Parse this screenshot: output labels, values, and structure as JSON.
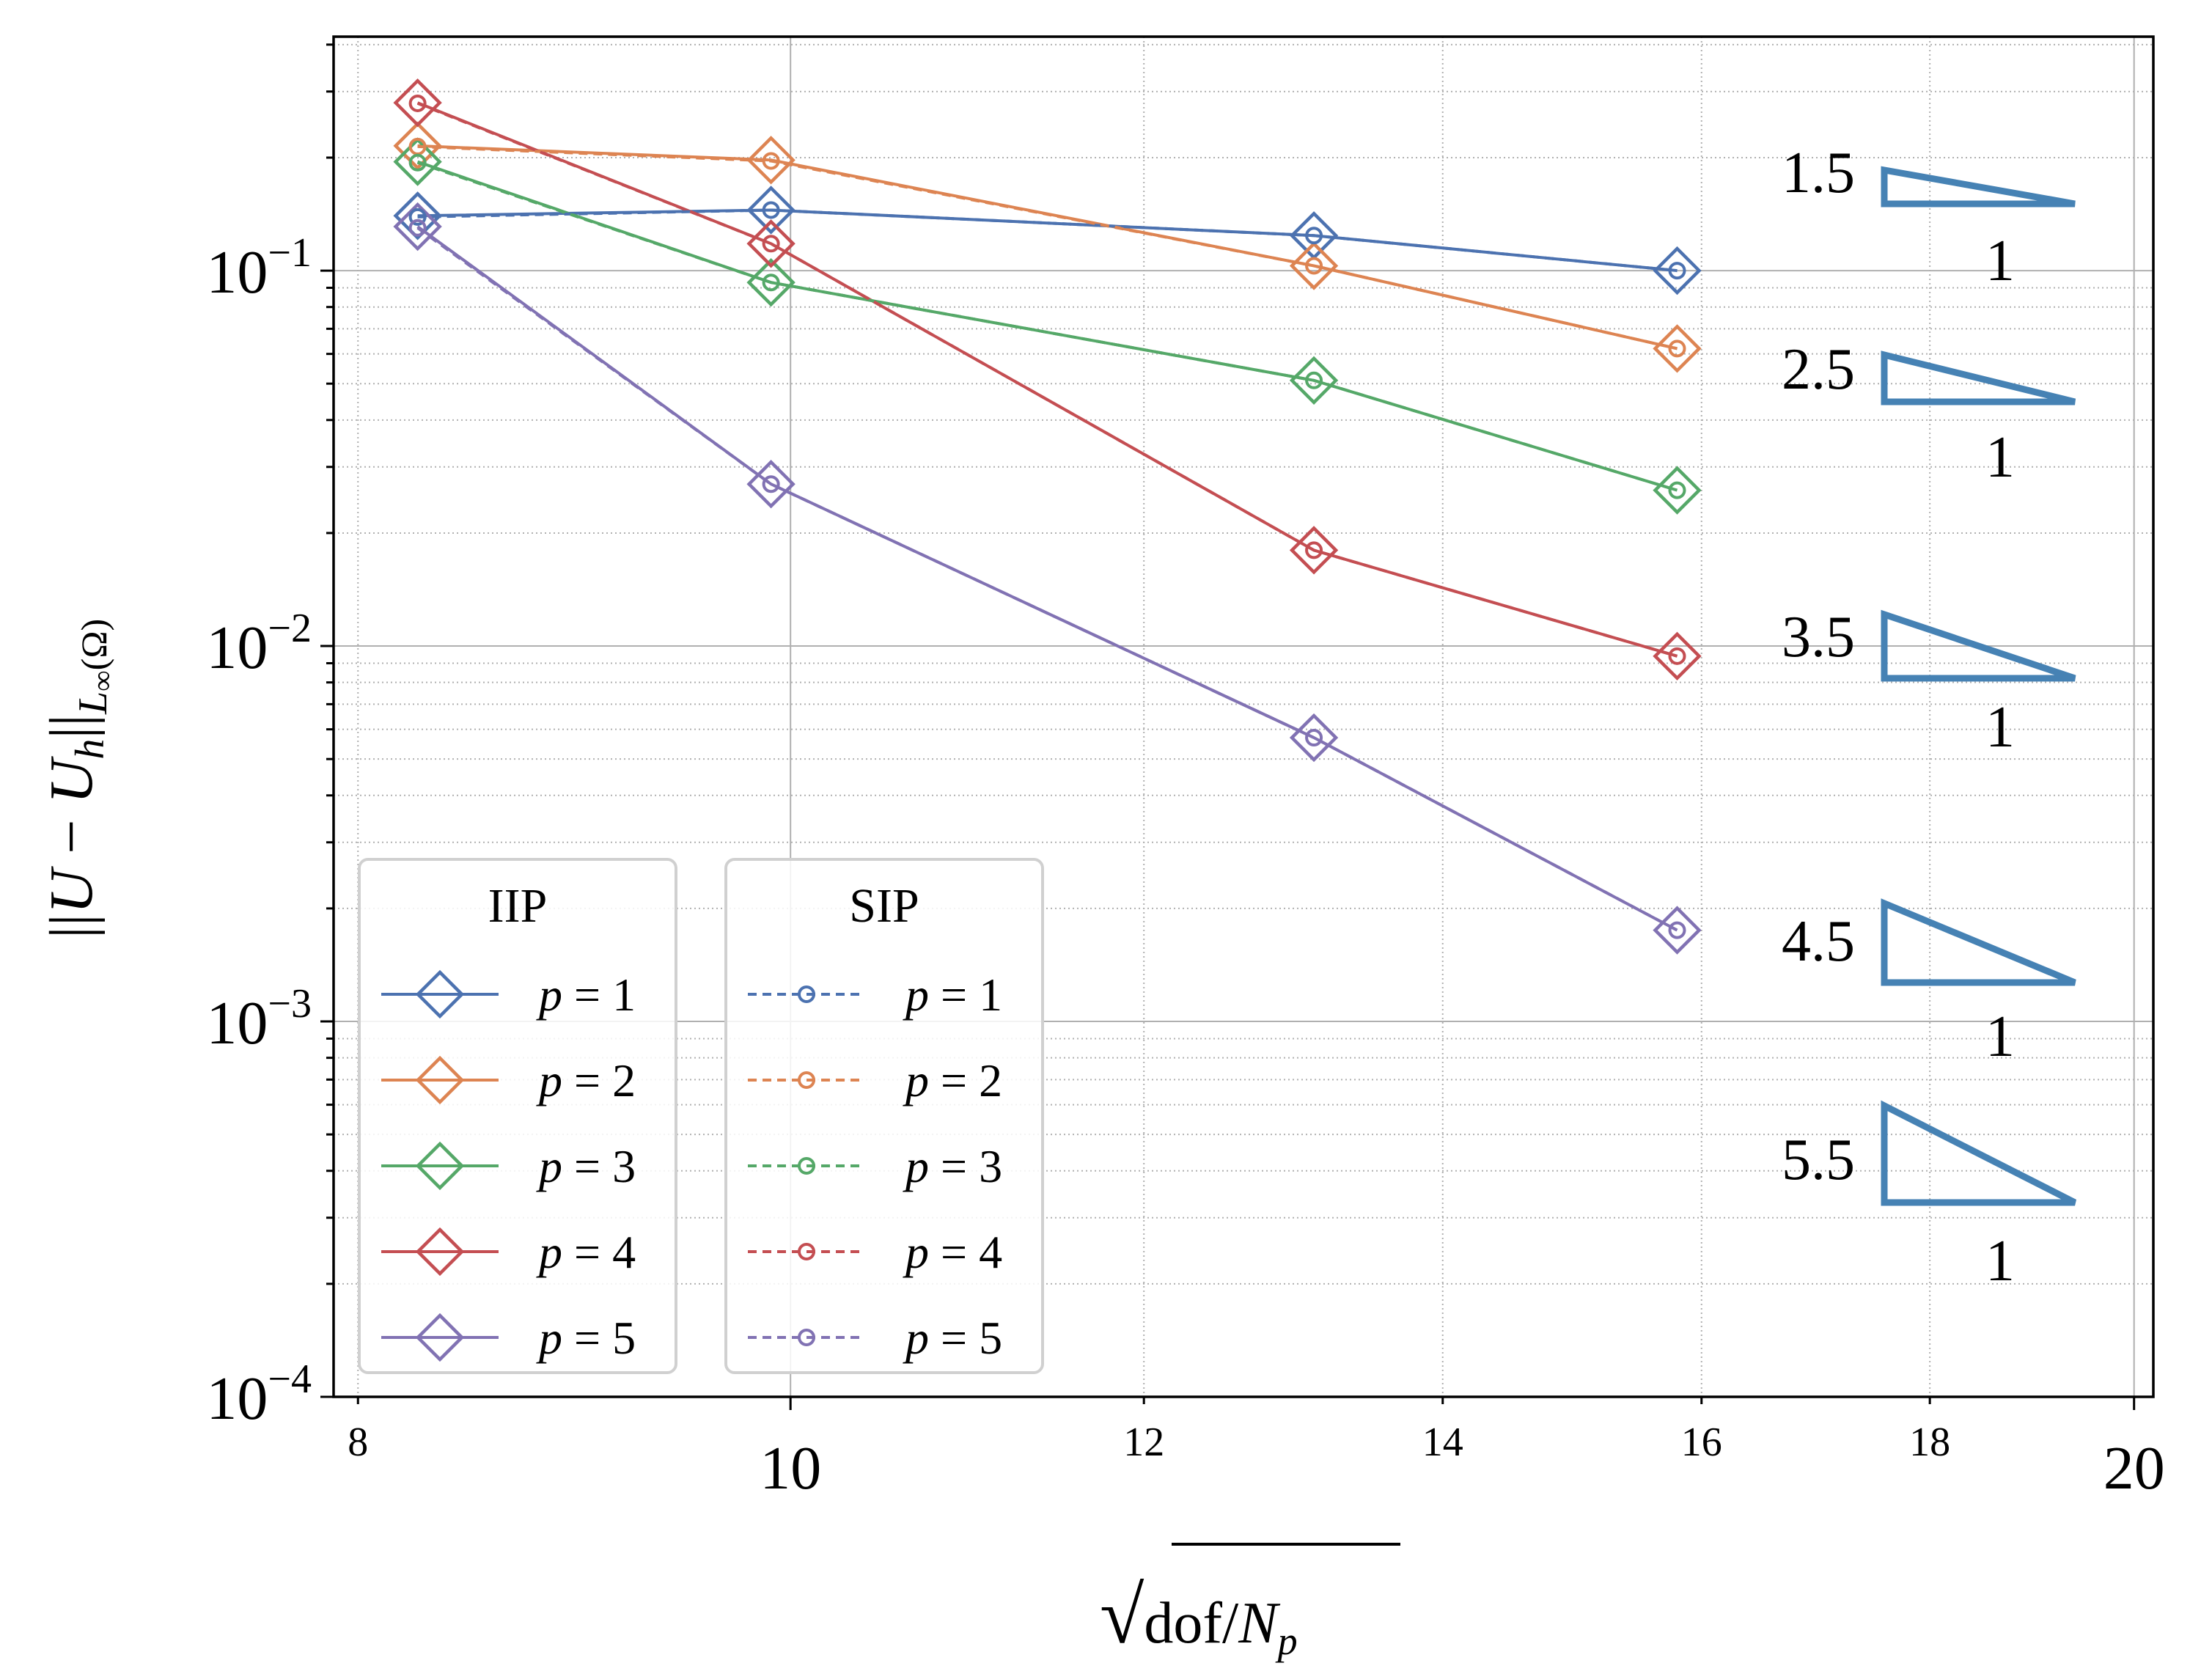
{
  "chart_data": {
    "type": "line",
    "xlabel": "√ dof/N_p",
    "xlabel_parts": {
      "sqrt": "√",
      "main": "dof/",
      "var": "N",
      "sub": "p"
    },
    "ylabel_parts": {
      "left": "||",
      "U": "U",
      "minus": " − ",
      "Uh": "U",
      "h": "h",
      "right": "||",
      "Linf": "L",
      "inf": "∞",
      "omega": "(Ω)"
    },
    "x_scale": "log",
    "y_scale": "log",
    "xlim": [
      7.9,
      20.2
    ],
    "ylim": [
      0.0001,
      0.42
    ],
    "x_major_ticks": [
      {
        "value": 10,
        "label": "10"
      },
      {
        "value": 20,
        "label": "20"
      }
    ],
    "x_minor_ticks": [
      {
        "value": 8,
        "label": "8"
      },
      {
        "value": 12,
        "label": "12"
      },
      {
        "value": 14,
        "label": "14"
      },
      {
        "value": 16,
        "label": "16"
      },
      {
        "value": 18,
        "label": "18"
      }
    ],
    "y_major_ticks": [
      {
        "value": 0.0001,
        "base": "10",
        "exp": "−4"
      },
      {
        "value": 0.001,
        "base": "10",
        "exp": "−3"
      },
      {
        "value": 0.01,
        "base": "10",
        "exp": "−2"
      },
      {
        "value": 0.1,
        "base": "10",
        "exp": "−1"
      }
    ],
    "grid": "major solid, minor dotted",
    "x": [
      8.25,
      9.9,
      13.1,
      15.8
    ],
    "series": [
      {
        "group": "IIP",
        "label": "p = 1",
        "p": "1",
        "color": "#4c72b0",
        "values": [
          0.14,
          0.145,
          0.124,
          0.1
        ]
      },
      {
        "group": "IIP",
        "label": "p = 2",
        "p": "2",
        "color": "#dd8452",
        "values": [
          0.215,
          0.197,
          0.103,
          0.062
        ]
      },
      {
        "group": "IIP",
        "label": "p = 3",
        "p": "3",
        "color": "#55a868",
        "values": [
          0.195,
          0.093,
          0.051,
          0.026
        ]
      },
      {
        "group": "IIP",
        "label": "p = 4",
        "p": "4",
        "color": "#c44e52",
        "values": [
          0.28,
          0.118,
          0.018,
          0.0094
        ]
      },
      {
        "group": "IIP",
        "label": "p = 5",
        "p": "5",
        "color": "#8172b3",
        "values": [
          0.131,
          0.027,
          0.0057,
          0.00175
        ]
      },
      {
        "group": "SIP",
        "label": "p = 1",
        "p": "1",
        "color": "#4c72b0",
        "values": [
          0.139,
          0.145,
          0.124,
          0.1
        ]
      },
      {
        "group": "SIP",
        "label": "p = 2",
        "p": "2",
        "color": "#dd8452",
        "values": [
          0.214,
          0.196,
          0.103,
          0.062
        ]
      },
      {
        "group": "SIP",
        "label": "p = 3",
        "p": "3",
        "color": "#55a868",
        "values": [
          0.194,
          0.093,
          0.051,
          0.026
        ]
      },
      {
        "group": "SIP",
        "label": "p = 4",
        "p": "4",
        "color": "#c44e52",
        "values": [
          0.279,
          0.118,
          0.018,
          0.0094
        ]
      },
      {
        "group": "SIP",
        "label": "p = 5",
        "p": "5",
        "color": "#8172b3",
        "values": [
          0.13,
          0.027,
          0.0057,
          0.00175
        ]
      }
    ],
    "legend": {
      "placement": "lower-left",
      "groups": [
        {
          "title": "IIP",
          "style": "solid line, diamond marker"
        },
        {
          "title": "SIP",
          "style": "dashed line, small circle marker"
        }
      ]
    },
    "slope_triangles": [
      {
        "rise_label": "1.5",
        "run_label": "1",
        "slope": 1.5
      },
      {
        "rise_label": "2.5",
        "run_label": "1",
        "slope": 2.5
      },
      {
        "rise_label": "3.5",
        "run_label": "1",
        "slope": 3.5
      },
      {
        "rise_label": "4.5",
        "run_label": "1",
        "slope": 4.5
      },
      {
        "rise_label": "5.5",
        "run_label": "1",
        "slope": 5.5
      }
    ],
    "triangle_color": "#4682b4"
  }
}
